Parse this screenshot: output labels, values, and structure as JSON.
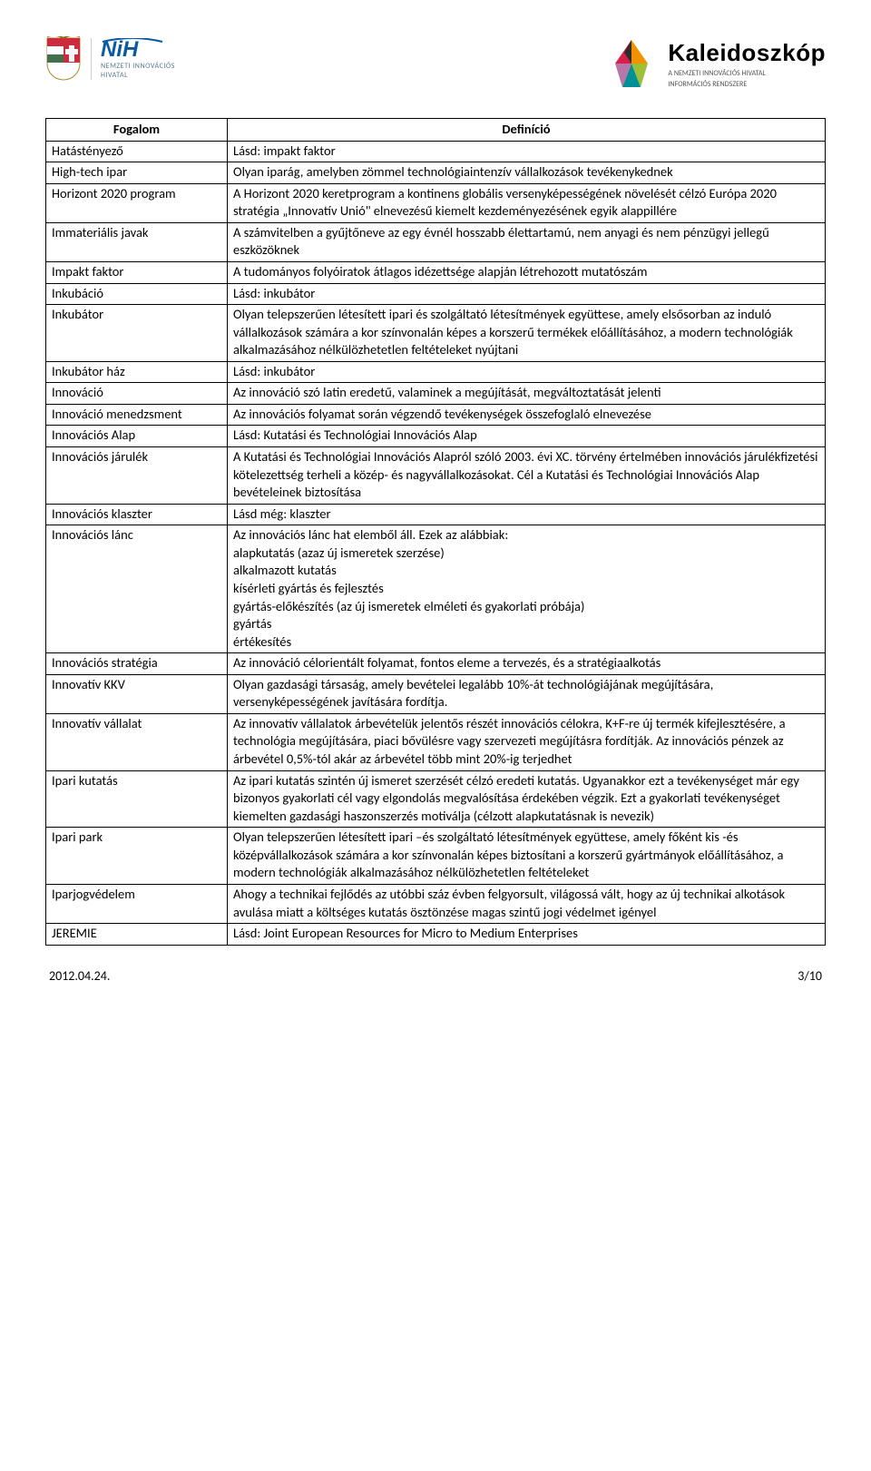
{
  "header": {
    "nih_title": "NiH",
    "nih_sub": "NEMZETI INNOVÁCIÓS\nHIVATAL",
    "k_title": "Kaleidoszkóp",
    "k_sub1": "A NEMZETI INNOVÁCIÓS HIVATAL",
    "k_sub2": "INFORMÁCIÓS RENDSZERE"
  },
  "table": {
    "col1": "Fogalom",
    "col2": "Definíció",
    "rows": [
      {
        "term": "Hatástényező",
        "def": "Lásd: impakt faktor"
      },
      {
        "term": "High-tech ipar",
        "def": "Olyan iparág, amelyben zömmel technológiaintenzív vállalkozások tevékenykednek"
      },
      {
        "term": "Horizont 2020 program",
        "def": "A Horizont 2020 keretprogram a kontinens globális versenyképességének növelését célzó Európa 2020 stratégia „Innovatív Unió\" elnevezésű kiemelt kezdeményezésének egyik alappillére"
      },
      {
        "term": "Immateriális javak",
        "def": "A számvitelben a gyűjtőneve az egy évnél hosszabb élettartamú, nem anyagi és nem pénzügyi jellegű eszközöknek"
      },
      {
        "term": "Impakt faktor",
        "def": "A tudományos folyóiratok átlagos idézettsége alapján létrehozott mutatószám"
      },
      {
        "term": "Inkubáció",
        "def": "Lásd: inkubátor"
      },
      {
        "term": "Inkubátor",
        "def": "Olyan telepszerűen létesített ipari és szolgáltató létesítmények együttese, amely elsősorban az induló vállalkozások számára a kor színvonalán  képes a korszerű termékek előállításához, a modern technológiák alkalmazásához nélkülözhetetlen feltételeket nyújtani"
      },
      {
        "term": "Inkubátor ház",
        "def": "Lásd: inkubátor"
      },
      {
        "term": "Innováció",
        "def": "Az innováció szó latin eredetű, valaminek a megújítását, megváltoztatását jelenti"
      },
      {
        "term": "Innováció menedzsment",
        "def": "Az innovációs folyamat során végzendő tevékenységek összefoglaló elnevezése"
      },
      {
        "term": "Innovációs Alap",
        "def": "Lásd: Kutatási és Technológiai Innovációs Alap"
      },
      {
        "term": "Innovációs járulék",
        "def": "A Kutatási és Technológiai Innovációs Alapról szóló 2003. évi XC. törvény értelmében innovációs járulékfizetési kötelezettség terheli a közép- és nagyvállalkozásokat. Cél a Kutatási és Technológiai Innovációs Alap bevételeinek biztosítása"
      },
      {
        "term": "Innovációs klaszter",
        "def": "Lásd még: klaszter"
      },
      {
        "term": "Innovációs lánc",
        "def": "Az innovációs lánc hat elemből áll. Ezek az alábbiak:\nalapkutatás (azaz új ismeretek szerzése)\nalkalmazott kutatás\nkísérleti gyártás és fejlesztés\ngyártás-előkészítés (az új ismeretek elméleti és gyakorlati próbája)\ngyártás\nértékesítés"
      },
      {
        "term": "Innovációs stratégia",
        "def": "Az innováció célorientált folyamat, fontos eleme a tervezés, és a stratégiaalkotás"
      },
      {
        "term": "Innovatív KKV",
        "def": "Olyan gazdasági társaság, amely bevételei legalább 10%-át technológiájának megújítására, versenyképességének javítására fordítja."
      },
      {
        "term": "Innovatív vállalat",
        "def": "Az innovatív vállalatok árbevételük jelentős részét innovációs célokra, K+F-re új termék kifejlesztésére, a technológia megújítására, piaci bővülésre vagy szervezeti megújításra fordítják. Az innovációs pénzek az árbevétel 0,5%-tól akár az árbevétel több mint 20%-ig terjedhet"
      },
      {
        "term": "Ipari kutatás",
        "def": "Az ipari kutatás szintén új ismeret szerzését célzó eredeti kutatás. Ugyanakkor ezt a tevékenységet már egy bizonyos gyakorlati cél vagy elgondolás megvalósítása érdekében végzik. Ezt a gyakorlati tevékenységet kiemelten gazdasági haszonszerzés motiválja (célzott alapkutatásnak is nevezik)"
      },
      {
        "term": "Ipari park",
        "def": "Olyan telepszerűen létesített ipari –és szolgáltató létesítmények együttese, amely főként kis -és középvállalkozások számára a kor színvonalán képes biztosítani a korszerű gyártmányok előállításához, a modern technológiák alkalmazásához nélkülözhetetlen feltételeket"
      },
      {
        "term": "Iparjogvédelem",
        "def": "Ahogy a technikai fejlődés az utóbbi száz évben felgyorsult, világossá vált, hogy az új technikai alkotások avulása miatt a költséges kutatás ösztönzése magas szintű jogi védelmet igényel"
      },
      {
        "term": "JEREMIE",
        "def": "Lásd: Joint European Resources for Micro to Medium Enterprises"
      }
    ]
  },
  "footer": {
    "date": "2012.04.24.",
    "page": "3/10"
  },
  "colors": {
    "nih_blue": "#0a5aa0",
    "k_red": "#d6204b",
    "k_orange": "#f39200",
    "k_green": "#9fbf3b",
    "k_teal": "#008f95",
    "k_purple": "#b676a8",
    "k_dark": "#2d2d2d"
  }
}
